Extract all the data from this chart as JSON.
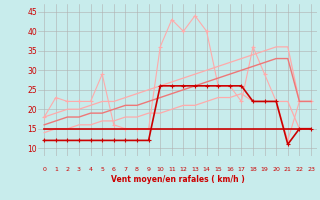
{
  "x": [
    0,
    1,
    2,
    3,
    4,
    5,
    6,
    7,
    8,
    9,
    10,
    11,
    12,
    13,
    14,
    15,
    16,
    17,
    18,
    19,
    20,
    21,
    22,
    23
  ],
  "series_pink_jagged": [
    18,
    23,
    22,
    22,
    22,
    29,
    16,
    15,
    15,
    15,
    36,
    43,
    40,
    44,
    40,
    26,
    26,
    22,
    36,
    29,
    22,
    12,
    22,
    22
  ],
  "series_dark_red_step": [
    12,
    12,
    12,
    12,
    12,
    12,
    12,
    12,
    12,
    12,
    26,
    26,
    26,
    26,
    26,
    26,
    26,
    26,
    22,
    22,
    22,
    11,
    15,
    15
  ],
  "series_dark_flat": [
    15,
    15,
    15,
    15,
    15,
    15,
    15,
    15,
    15,
    15,
    15,
    15,
    15,
    15,
    15,
    15,
    15,
    15,
    15,
    15,
    15,
    15,
    15,
    15
  ],
  "series_trend1": [
    18,
    19,
    20,
    20,
    21,
    22,
    22,
    23,
    24,
    25,
    26,
    27,
    28,
    29,
    30,
    31,
    32,
    33,
    34,
    35,
    36,
    36,
    22,
    22
  ],
  "series_trend2": [
    16,
    17,
    18,
    18,
    19,
    19,
    20,
    21,
    21,
    22,
    23,
    24,
    25,
    26,
    27,
    28,
    29,
    30,
    31,
    32,
    33,
    33,
    22,
    22
  ],
  "series_trend3": [
    14,
    15,
    15,
    16,
    16,
    17,
    17,
    18,
    18,
    19,
    19,
    20,
    21,
    21,
    22,
    23,
    23,
    24,
    22,
    22,
    22,
    22,
    15,
    15
  ],
  "ylim": [
    8,
    47
  ],
  "xlim": [
    -0.5,
    23.5
  ],
  "yticks": [
    10,
    15,
    20,
    25,
    30,
    35,
    40,
    45
  ],
  "xticks": [
    0,
    1,
    2,
    3,
    4,
    5,
    6,
    7,
    8,
    9,
    10,
    11,
    12,
    13,
    14,
    15,
    16,
    17,
    18,
    19,
    20,
    21,
    22,
    23
  ],
  "bg_color": "#c8ecec",
  "grid_color": "#b0b0b0",
  "xlabel": "Vent moyen/en rafales ( km/h )",
  "color_dark_red": "#cc0000",
  "color_light_pink": "#ffaaaa",
  "color_mid_pink": "#ee8888"
}
